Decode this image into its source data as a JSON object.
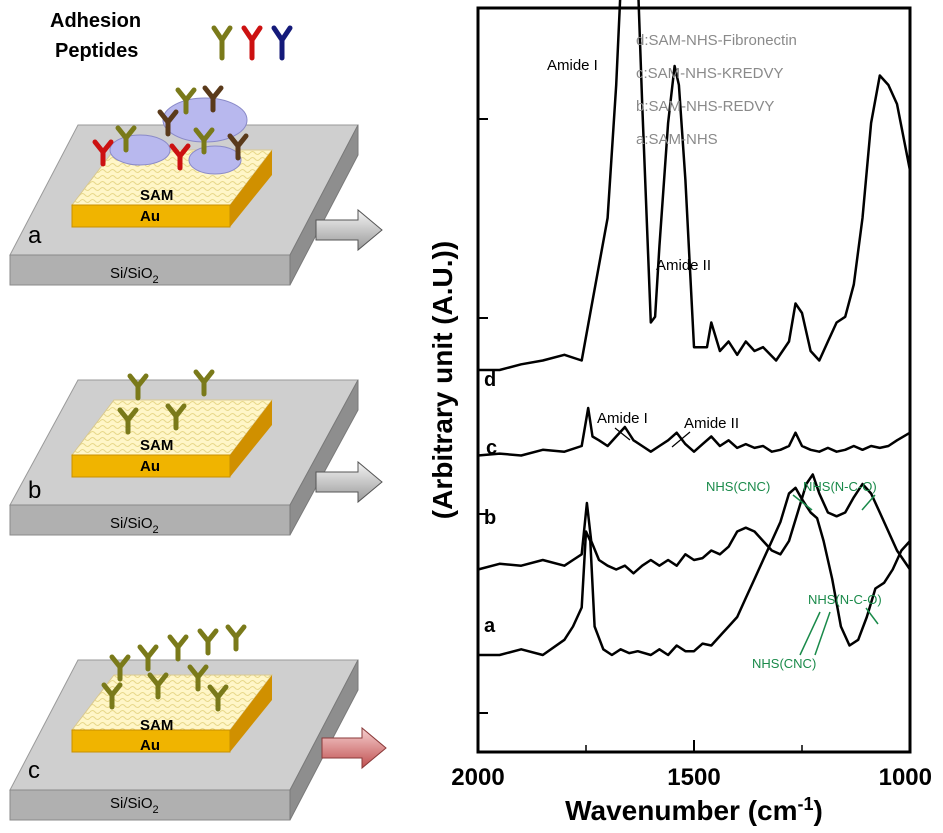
{
  "legend_title": {
    "line1": "Adhesion",
    "line2": "Peptides"
  },
  "panels": [
    {
      "letter": "a",
      "sam": "SAM",
      "au": "Au",
      "sub_prefix": "Si/SiO",
      "sub_subscript": "2"
    },
    {
      "letter": "b",
      "sam": "SAM",
      "au": "Au",
      "sub_prefix": "Si/SiO",
      "sub_subscript": "2"
    },
    {
      "letter": "c",
      "sam": "SAM",
      "au": "Au",
      "sub_prefix": "Si/SiO",
      "sub_subscript": "2"
    }
  ],
  "colors": {
    "peptide_olive": "#7a7a1a",
    "peptide_red": "#cc1111",
    "peptide_navy": "#141a7a",
    "peptide_brown": "#5a3a1a",
    "protein_blob": "#b8b8ee",
    "gold": "#f0b400",
    "sam": "#fff6c8",
    "substrate": "#bdbdbd",
    "arrow_gray": "#bbbbbb",
    "arrow_red": "#d87070",
    "annotation_green": "#1a8a4a"
  },
  "chart_data": {
    "type": "line",
    "xlabel_main": "Wavenumber (cm",
    "xlabel_sup": "-1",
    "xlabel_end": ")",
    "ylabel": "(Arbitrary unit (A.U.))",
    "x_ticks": [
      "2000",
      "1500",
      "1000"
    ],
    "xlim": [
      2000,
      1000
    ],
    "legend": [
      "d:SAM-NHS-Fibronectin",
      "c:SAM-NHS-KREDVY",
      "b:SAM-NHS-REDVY",
      "a:SAM-NHS"
    ],
    "series": [
      {
        "name": "d",
        "offset": 1.5,
        "points": [
          [
            2000,
            0
          ],
          [
            1950,
            0
          ],
          [
            1900,
            0.03
          ],
          [
            1850,
            0.05
          ],
          [
            1800,
            0.08
          ],
          [
            1760,
            0.05
          ],
          [
            1740,
            0.3
          ],
          [
            1700,
            0.8
          ],
          [
            1680,
            1.5
          ],
          [
            1660,
            2.5
          ],
          [
            1650,
            3.1
          ],
          [
            1640,
            2.7
          ],
          [
            1620,
            1.4
          ],
          [
            1600,
            0.25
          ],
          [
            1590,
            0.28
          ],
          [
            1580,
            0.65
          ],
          [
            1560,
            1.3
          ],
          [
            1545,
            1.6
          ],
          [
            1535,
            1.5
          ],
          [
            1520,
            1.0
          ],
          [
            1500,
            0.12
          ],
          [
            1470,
            0.12
          ],
          [
            1460,
            0.25
          ],
          [
            1440,
            0.1
          ],
          [
            1420,
            0.15
          ],
          [
            1400,
            0.08
          ],
          [
            1380,
            0.15
          ],
          [
            1360,
            0.1
          ],
          [
            1340,
            0.12
          ],
          [
            1310,
            0.05
          ],
          [
            1280,
            0.15
          ],
          [
            1265,
            0.35
          ],
          [
            1250,
            0.3
          ],
          [
            1230,
            0.1
          ],
          [
            1210,
            0.05
          ],
          [
            1190,
            0.15
          ],
          [
            1170,
            0.25
          ],
          [
            1150,
            0.28
          ],
          [
            1130,
            0.45
          ],
          [
            1110,
            0.8
          ],
          [
            1090,
            1.3
          ],
          [
            1070,
            1.55
          ],
          [
            1050,
            1.5
          ],
          [
            1030,
            1.4
          ],
          [
            1000,
            1.05
          ]
        ]
      },
      {
        "name": "c",
        "offset": 1.05,
        "points": [
          [
            2000,
            0
          ],
          [
            1950,
            0.01
          ],
          [
            1900,
            0
          ],
          [
            1850,
            0.03
          ],
          [
            1800,
            0.02
          ],
          [
            1760,
            0.05
          ],
          [
            1745,
            0.25
          ],
          [
            1735,
            0.1
          ],
          [
            1720,
            0.08
          ],
          [
            1700,
            0.05
          ],
          [
            1680,
            0.1
          ],
          [
            1660,
            0.15
          ],
          [
            1640,
            0.08
          ],
          [
            1620,
            0.05
          ],
          [
            1600,
            0.02
          ],
          [
            1580,
            0.05
          ],
          [
            1560,
            0.08
          ],
          [
            1540,
            0.12
          ],
          [
            1520,
            0.06
          ],
          [
            1500,
            0.02
          ],
          [
            1480,
            0.06
          ],
          [
            1460,
            0.1
          ],
          [
            1440,
            0.05
          ],
          [
            1420,
            0.08
          ],
          [
            1400,
            0.04
          ],
          [
            1380,
            0.06
          ],
          [
            1360,
            0.04
          ],
          [
            1340,
            0.05
          ],
          [
            1320,
            0.02
          ],
          [
            1300,
            0.03
          ],
          [
            1280,
            0.05
          ],
          [
            1265,
            0.12
          ],
          [
            1250,
            0.05
          ],
          [
            1230,
            0.03
          ],
          [
            1210,
            0.02
          ],
          [
            1190,
            0.04
          ],
          [
            1170,
            0.02
          ],
          [
            1150,
            0.03
          ],
          [
            1130,
            0.05
          ],
          [
            1110,
            0.03
          ],
          [
            1090,
            0.05
          ],
          [
            1070,
            0.04
          ],
          [
            1050,
            0.05
          ],
          [
            1030,
            0.08
          ],
          [
            1000,
            0.12
          ]
        ]
      },
      {
        "name": "b",
        "offset": 0.45,
        "points": [
          [
            2000,
            0
          ],
          [
            1950,
            0.03
          ],
          [
            1900,
            0.02
          ],
          [
            1850,
            0.05
          ],
          [
            1800,
            0.02
          ],
          [
            1780,
            0.05
          ],
          [
            1760,
            0.08
          ],
          [
            1748,
            0.35
          ],
          [
            1738,
            0.15
          ],
          [
            1720,
            0.05
          ],
          [
            1700,
            0.02
          ],
          [
            1680,
            0
          ],
          [
            1660,
            0.02
          ],
          [
            1640,
            -0.02
          ],
          [
            1620,
            0.02
          ],
          [
            1600,
            0.05
          ],
          [
            1580,
            0.02
          ],
          [
            1560,
            0.05
          ],
          [
            1540,
            0.02
          ],
          [
            1520,
            0.08
          ],
          [
            1500,
            0.05
          ],
          [
            1480,
            0.06
          ],
          [
            1460,
            0.1
          ],
          [
            1440,
            0.08
          ],
          [
            1420,
            0.12
          ],
          [
            1400,
            0.2
          ],
          [
            1380,
            0.22
          ],
          [
            1360,
            0.2
          ],
          [
            1340,
            0.15
          ],
          [
            1320,
            0.1
          ],
          [
            1300,
            0.08
          ],
          [
            1280,
            0.15
          ],
          [
            1260,
            0.3
          ],
          [
            1240,
            0.45
          ],
          [
            1225,
            0.5
          ],
          [
            1210,
            0.4
          ],
          [
            1190,
            0.3
          ],
          [
            1170,
            0.28
          ],
          [
            1150,
            0.3
          ],
          [
            1130,
            0.38
          ],
          [
            1110,
            0.45
          ],
          [
            1090,
            0.4
          ],
          [
            1070,
            0.3
          ],
          [
            1050,
            0.2
          ],
          [
            1030,
            0.1
          ],
          [
            1000,
            0.0
          ]
        ]
      },
      {
        "name": "a",
        "offset": 0.0,
        "points": [
          [
            2000,
            0
          ],
          [
            1950,
            0
          ],
          [
            1900,
            0.03
          ],
          [
            1850,
            0
          ],
          [
            1800,
            0.08
          ],
          [
            1780,
            0.15
          ],
          [
            1760,
            0.25
          ],
          [
            1750,
            0.65
          ],
          [
            1740,
            0.6
          ],
          [
            1730,
            0.15
          ],
          [
            1710,
            0.03
          ],
          [
            1690,
            0
          ],
          [
            1670,
            0.03
          ],
          [
            1650,
            0.01
          ],
          [
            1630,
            0.02
          ],
          [
            1600,
            0
          ],
          [
            1580,
            0.03
          ],
          [
            1560,
            0
          ],
          [
            1540,
            0.05
          ],
          [
            1520,
            0.02
          ],
          [
            1500,
            0.02
          ],
          [
            1480,
            0.06
          ],
          [
            1460,
            0.05
          ],
          [
            1440,
            0.1
          ],
          [
            1420,
            0.15
          ],
          [
            1400,
            0.2
          ],
          [
            1380,
            0.3
          ],
          [
            1360,
            0.4
          ],
          [
            1340,
            0.5
          ],
          [
            1320,
            0.6
          ],
          [
            1300,
            0.7
          ],
          [
            1280,
            0.85
          ],
          [
            1265,
            0.88
          ],
          [
            1250,
            0.82
          ],
          [
            1230,
            0.75
          ],
          [
            1215,
            0.72
          ],
          [
            1200,
            0.6
          ],
          [
            1180,
            0.4
          ],
          [
            1160,
            0.15
          ],
          [
            1140,
            0.05
          ],
          [
            1120,
            0.08
          ],
          [
            1100,
            0.2
          ],
          [
            1080,
            0.35
          ],
          [
            1060,
            0.38
          ],
          [
            1040,
            0.45
          ],
          [
            1020,
            0.55
          ],
          [
            1000,
            0.6
          ]
        ]
      }
    ],
    "series_labels": [
      "d",
      "c",
      "b",
      "a"
    ],
    "annotations": {
      "d_amide1": "Amide I",
      "d_amide2": "Amide II",
      "c_amide1": "Amide I",
      "c_amide2": "Amide II",
      "b_cnc": "NHS(CNC)",
      "b_nco": "NHS(N-C-O)",
      "a_nco": "NHS(N-C-O)",
      "a_cnc": "NHS(CNC)"
    }
  }
}
